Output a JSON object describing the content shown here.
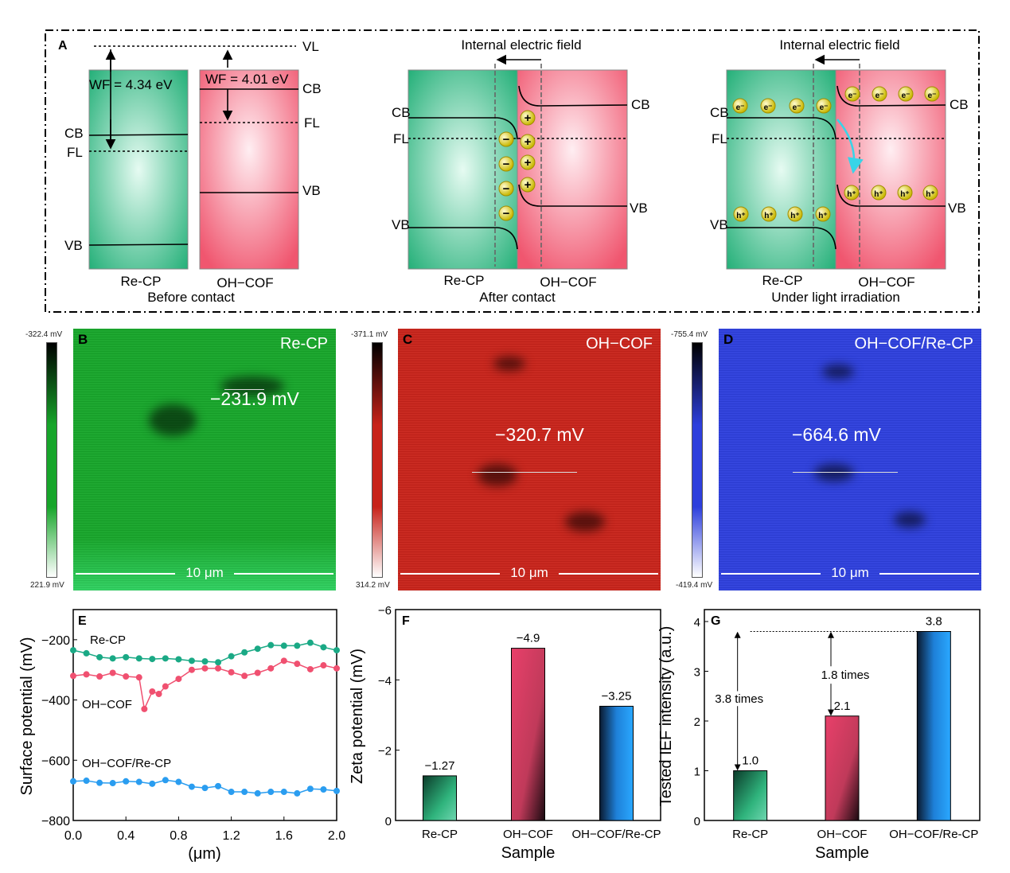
{
  "panelA": {
    "label": "A",
    "before": {
      "vl": "VL",
      "wf_left": "WF = 4.34 eV",
      "wf_right": "WF = 4.01 eV",
      "cb": "CB",
      "fl": "FL",
      "vb": "VB",
      "left": "Re-CP",
      "right": "OH−COF",
      "caption": "Before contact"
    },
    "after": {
      "title": "Internal electric field",
      "cb": "CB",
      "fl": "FL",
      "vb": "VB",
      "left": "Re-CP",
      "right": "OH−COF",
      "caption": "After contact",
      "minus": "−",
      "plus": "+"
    },
    "light": {
      "title": "Internal electric field",
      "cb": "CB",
      "fl": "FL",
      "vb": "VB",
      "left": "Re-CP",
      "right": "OH−COF",
      "caption": "Under light irradiation",
      "electron": "e⁻",
      "hole": "h⁺"
    },
    "colors": {
      "recp": "#2fb37c",
      "ohcof": "#f0607e",
      "arrow": "#38d4e8"
    }
  },
  "maps": [
    {
      "label": "B",
      "title": "Re-CP",
      "value": "−231.9 mV",
      "scale": "10 μm",
      "cbar_top": "-322.4 mV",
      "cbar_bottom": "221.9 mV",
      "color": "#17a52a"
    },
    {
      "label": "C",
      "title": "OH−COF",
      "value": "−320.7 mV",
      "scale": "10 μm",
      "cbar_top": "-371.1 mV",
      "cbar_bottom": "314.2 mV",
      "color": "#c7231a"
    },
    {
      "label": "D",
      "title": "OH−COF/Re-CP",
      "value": "−664.6 mV",
      "scale": "10 μm",
      "cbar_top": "-755.4 mV",
      "cbar_bottom": "-419.4 mV",
      "color": "#2d3fdc"
    }
  ],
  "chart_data": [
    {
      "panel": "E",
      "type": "line",
      "xlabel": "(μm)",
      "ylabel": "Surface potential (mV)",
      "xlim": [
        0,
        2
      ],
      "ylim": [
        -800,
        -100
      ],
      "xticks": [
        "0.0",
        "0.4",
        "0.8",
        "1.2",
        "1.6",
        "2.0"
      ],
      "yticks": [
        "−200",
        "−400",
        "−600",
        "−800"
      ],
      "series": [
        {
          "name": "Re-CP",
          "color": "#1aa985",
          "x": [
            0,
            0.1,
            0.2,
            0.3,
            0.4,
            0.5,
            0.6,
            0.7,
            0.8,
            0.9,
            1.0,
            1.1,
            1.2,
            1.3,
            1.4,
            1.5,
            1.6,
            1.7,
            1.8,
            1.9,
            2.0
          ],
          "y": [
            -235,
            -245,
            -258,
            -262,
            -258,
            -262,
            -264,
            -262,
            -265,
            -270,
            -272,
            -275,
            -255,
            -242,
            -230,
            -218,
            -220,
            -220,
            -210,
            -225,
            -235
          ]
        },
        {
          "name": "OH−COF",
          "color": "#f05070",
          "x": [
            0,
            0.1,
            0.2,
            0.3,
            0.4,
            0.5,
            0.54,
            0.6,
            0.65,
            0.7,
            0.8,
            0.9,
            1.0,
            1.1,
            1.2,
            1.3,
            1.4,
            1.5,
            1.6,
            1.7,
            1.8,
            1.9,
            2.0
          ],
          "y": [
            -320,
            -315,
            -322,
            -310,
            -322,
            -325,
            -430,
            -372,
            -380,
            -355,
            -330,
            -300,
            -295,
            -295,
            -308,
            -320,
            -310,
            -295,
            -270,
            -280,
            -298,
            -285,
            -295
          ]
        },
        {
          "name": "OH−COF/Re-CP",
          "color": "#2a9df0",
          "x": [
            0,
            0.1,
            0.2,
            0.3,
            0.4,
            0.5,
            0.6,
            0.7,
            0.8,
            0.9,
            1.0,
            1.1,
            1.2,
            1.3,
            1.4,
            1.5,
            1.6,
            1.7,
            1.8,
            1.9,
            2.0
          ],
          "y": [
            -670,
            -668,
            -675,
            -676,
            -670,
            -672,
            -678,
            -666,
            -672,
            -688,
            -692,
            -686,
            -705,
            -705,
            -710,
            -705,
            -705,
            -710,
            -695,
            -697,
            -702
          ]
        }
      ]
    },
    {
      "panel": "F",
      "type": "bar",
      "xlabel": "Sample",
      "ylabel": "Zeta potential (mV)",
      "ylim": [
        0,
        -6
      ],
      "yticks": [
        "0",
        "−2",
        "−4",
        "−6"
      ],
      "categories": [
        "Re-CP",
        "OH−COF",
        "OH−COF/Re-CP"
      ],
      "values": [
        -1.27,
        -4.9,
        -3.25
      ],
      "labels": [
        "−1.27",
        "−4.9",
        "−3.25"
      ],
      "colors": [
        "#2fb37c",
        "#e8406a",
        "#2a9df0"
      ]
    },
    {
      "panel": "G",
      "type": "bar",
      "xlabel": "Sample",
      "ylabel": "Tested IEF intensity (a.u.)",
      "ylim": [
        0,
        4.24
      ],
      "yticks": [
        "0",
        "1",
        "2",
        "3",
        "4"
      ],
      "categories": [
        "Re-CP",
        "OH−COF",
        "OH−COF/Re-CP"
      ],
      "values": [
        1.0,
        2.1,
        3.8
      ],
      "labels": [
        "1.0",
        "2.1",
        "3.8"
      ],
      "colors": [
        "#2fb37c",
        "#e8406a",
        "#2a9df0"
      ],
      "annotations": [
        "3.8 times",
        "1.8 times"
      ]
    }
  ]
}
